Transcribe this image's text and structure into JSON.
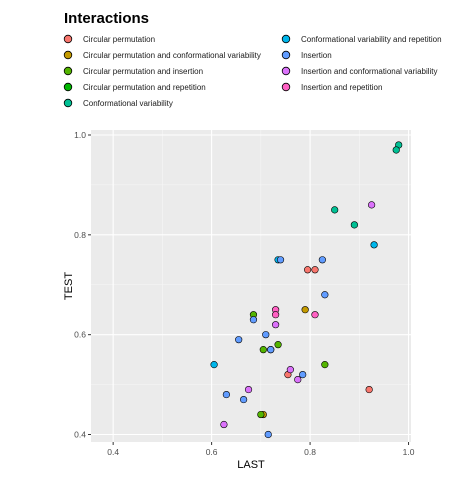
{
  "chart_data": {
    "type": "scatter",
    "title": "",
    "xlabel": "LAST",
    "ylabel": "TEST",
    "xlim": [
      0.355,
      1.005
    ],
    "ylim": [
      0.385,
      1.01
    ],
    "x_ticks": [
      0.4,
      0.6,
      0.8,
      1.0
    ],
    "x_tick_labels": [
      "0.4",
      "0.6",
      "0.8",
      "1.0"
    ],
    "y_ticks": [
      0.4,
      0.6,
      0.8,
      1.0
    ],
    "y_tick_labels": [
      "0.4",
      "0.6",
      "0.8",
      "1.0"
    ],
    "grid": true,
    "legend": {
      "title": "Interactions",
      "position": "top",
      "columns": 2
    },
    "series": [
      {
        "name": "Circular permutation",
        "color": "#F8766D",
        "points": [
          [
            0.795,
            0.73
          ],
          [
            0.81,
            0.73
          ],
          [
            0.755,
            0.52
          ],
          [
            0.92,
            0.49
          ]
        ]
      },
      {
        "name": "Circular permutation and conformational variability",
        "color": "#C49A00",
        "points": [
          [
            0.79,
            0.65
          ],
          [
            0.705,
            0.44
          ]
        ]
      },
      {
        "name": "Circular permutation and insertion",
        "color": "#53B400",
        "points": [
          [
            0.685,
            0.64
          ],
          [
            0.735,
            0.58
          ],
          [
            0.705,
            0.57
          ],
          [
            0.83,
            0.54
          ],
          [
            0.7,
            0.44
          ]
        ]
      },
      {
        "name": "Circular permutation and repetition",
        "color": "#00B600",
        "points": [
          [
            0.72,
            0.57
          ]
        ]
      },
      {
        "name": "Conformational variability",
        "color": "#00C094",
        "points": [
          [
            0.98,
            0.98
          ],
          [
            0.975,
            0.97
          ],
          [
            0.85,
            0.85
          ],
          [
            0.89,
            0.82
          ]
        ]
      },
      {
        "name": "Conformational variability and repetition",
        "color": "#00B6EB",
        "points": [
          [
            0.93,
            0.78
          ],
          [
            0.735,
            0.75
          ],
          [
            0.605,
            0.54
          ]
        ]
      },
      {
        "name": "Insertion",
        "color": "#619CFF",
        "points": [
          [
            0.74,
            0.75
          ],
          [
            0.825,
            0.75
          ],
          [
            0.83,
            0.68
          ],
          [
            0.685,
            0.63
          ],
          [
            0.71,
            0.6
          ],
          [
            0.655,
            0.59
          ],
          [
            0.72,
            0.57
          ],
          [
            0.785,
            0.52
          ],
          [
            0.63,
            0.48
          ],
          [
            0.665,
            0.47
          ],
          [
            0.715,
            0.4
          ]
        ]
      },
      {
        "name": "Insertion and conformational variability",
        "color": "#DB72FB",
        "points": [
          [
            0.925,
            0.86
          ],
          [
            0.73,
            0.62
          ],
          [
            0.76,
            0.53
          ],
          [
            0.675,
            0.49
          ],
          [
            0.775,
            0.51
          ],
          [
            0.625,
            0.42
          ]
        ]
      },
      {
        "name": "Insertion and repetition",
        "color": "#FF61C3",
        "points": [
          [
            0.73,
            0.65
          ],
          [
            0.73,
            0.64
          ],
          [
            0.81,
            0.64
          ]
        ]
      }
    ]
  }
}
